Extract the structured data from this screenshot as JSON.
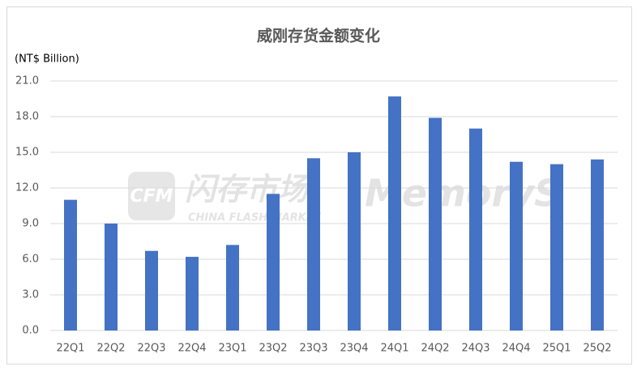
{
  "chart_data": {
    "type": "bar",
    "title": "威刚存货金额变化",
    "y_label": "(NT$ Billion)",
    "categories": [
      "22Q1",
      "22Q2",
      "22Q3",
      "22Q4",
      "23Q1",
      "23Q2",
      "23Q3",
      "23Q4",
      "24Q1",
      "24Q2",
      "24Q3",
      "24Q4",
      "25Q1",
      "25Q2"
    ],
    "values": [
      11.0,
      9.0,
      6.7,
      6.2,
      7.2,
      11.5,
      14.5,
      15.0,
      19.7,
      17.9,
      17.0,
      14.2,
      14.0,
      14.4
    ],
    "color": "#4472c4",
    "ylim": [
      0,
      21
    ],
    "yticks": [
      {
        "value": 0,
        "label": "0.0"
      },
      {
        "value": 3,
        "label": "3.0"
      },
      {
        "value": 6,
        "label": "6.0"
      },
      {
        "value": 9,
        "label": "9.0"
      },
      {
        "value": 12,
        "label": "12.0"
      },
      {
        "value": 15,
        "label": "15.0"
      },
      {
        "value": 18,
        "label": "18.0"
      },
      {
        "value": 21,
        "label": "21.0"
      }
    ],
    "grid": true,
    "watermarks": [
      "CFM",
      "闪存市场",
      "CHINA FLASH MARKET",
      "MemoryS"
    ]
  }
}
